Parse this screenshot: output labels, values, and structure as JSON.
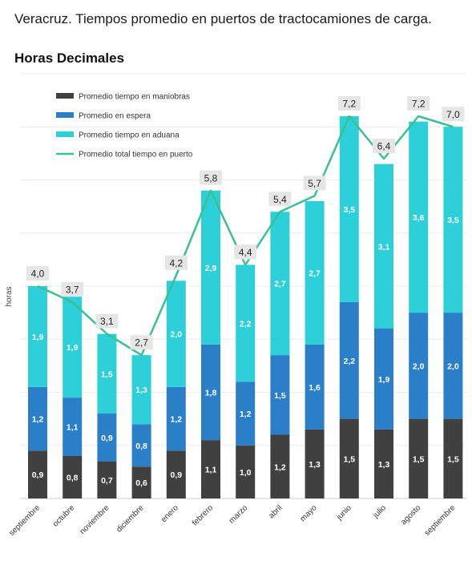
{
  "title": "Veracruz. Tiempos promedio en puertos de tractocamiones de carga.",
  "subtitle": "Horas Decimales",
  "chart_data": {
    "type": "bar",
    "stacked": true,
    "title": "Veracruz. Tiempos promedio en puertos de tractocamiones de carga.",
    "subtitle": "Horas Decimales",
    "ylabel": "horas",
    "xlabel": "",
    "ylim": [
      0,
      8
    ],
    "grid": true,
    "legend_position": "top-left",
    "categories": [
      "septiembre",
      "octubre",
      "noviembre",
      "diciembre",
      "enero",
      "febrero",
      "marzo",
      "abril",
      "mayo",
      "junio",
      "julio",
      "agosto",
      "septiembre"
    ],
    "series": [
      {
        "name": "Promedio tiempo en maniobras",
        "color": "#404040",
        "values": [
          0.9,
          0.8,
          0.7,
          0.6,
          0.9,
          1.1,
          1.0,
          1.2,
          1.3,
          1.5,
          1.3,
          1.5,
          1.5
        ],
        "labels": [
          "0,9",
          "0,8",
          "0,7",
          "0,6",
          "0,9",
          "1,1",
          "1,0",
          "1,2",
          "1,3",
          "1,5",
          "1,3",
          "1,5",
          "1,5"
        ]
      },
      {
        "name": "Promedio en espera",
        "color": "#2b7fc9",
        "values": [
          1.2,
          1.1,
          0.9,
          0.8,
          1.2,
          1.8,
          1.2,
          1.5,
          1.6,
          2.2,
          1.9,
          2.0,
          2.0
        ],
        "labels": [
          "1,2",
          "1,1",
          "0,9",
          "0,8",
          "1,2",
          "1,8",
          "1,2",
          "1,5",
          "1,6",
          "2,2",
          "1,9",
          "2,0",
          "2,0"
        ]
      },
      {
        "name": "Promedio tiempo en aduana",
        "color": "#2dcfd8",
        "values": [
          1.9,
          1.9,
          1.5,
          1.3,
          2.0,
          2.9,
          2.2,
          2.7,
          2.7,
          3.5,
          3.1,
          3.6,
          3.5
        ],
        "labels": [
          "1,9",
          "1,9",
          "1,5",
          "1,3",
          "2,0",
          "2,9",
          "2,2",
          "2,7",
          "2,7",
          "3,5",
          "3,1",
          "3,6",
          "3,5"
        ]
      }
    ],
    "line": {
      "name": "Promedio total tiempo en puerto",
      "color": "#3bbf94",
      "values": [
        4.0,
        3.7,
        3.1,
        2.7,
        4.2,
        5.8,
        4.4,
        5.4,
        5.7,
        7.2,
        6.4,
        7.2,
        7.0
      ],
      "labels": [
        "4,0",
        "3,7",
        "3,1",
        "2,7",
        "4,2",
        "5,8",
        "4,4",
        "5,4",
        "5,7",
        "7,2",
        "6,4",
        "7,2",
        "7,0"
      ]
    }
  }
}
